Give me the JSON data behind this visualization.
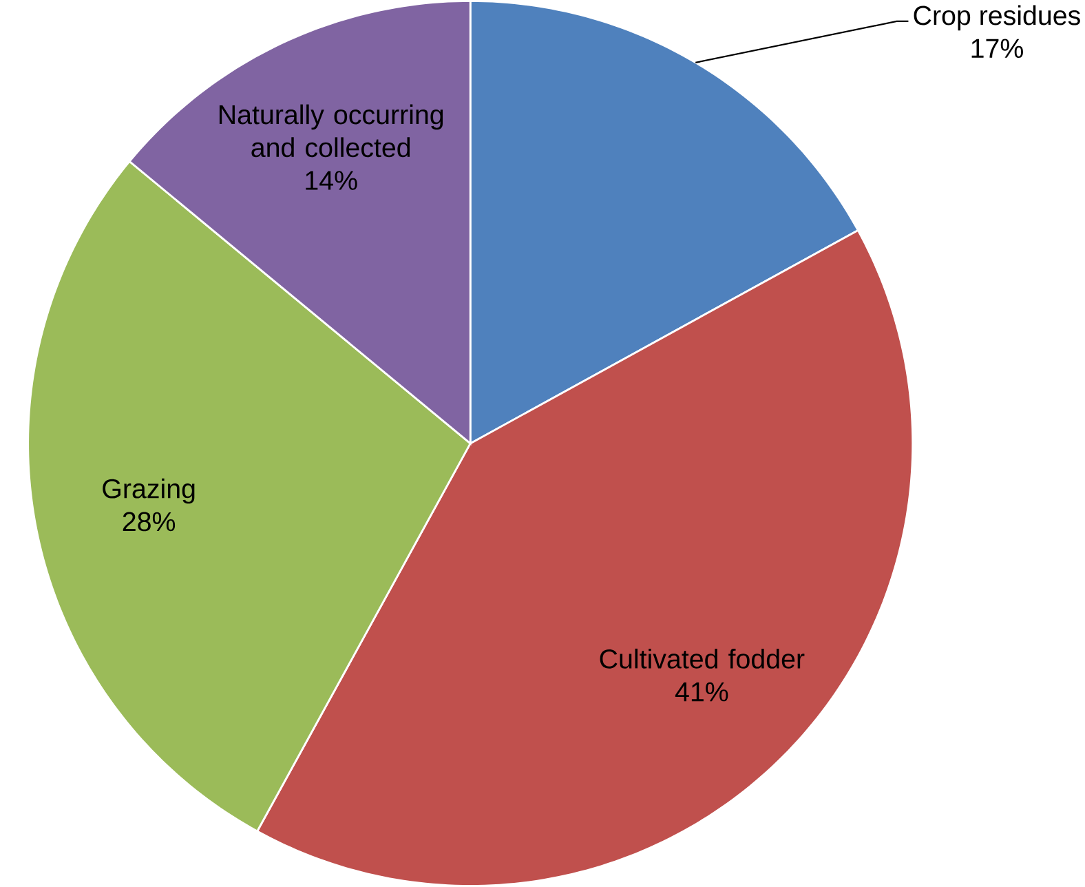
{
  "chart_data": {
    "type": "pie",
    "categories": [
      "Crop residues",
      "Cultivated fodder",
      "Grazing",
      "Naturally occurring and collected"
    ],
    "values": [
      17,
      41,
      28,
      14
    ],
    "colors": [
      "#4f81bd",
      "#c0504d",
      "#9bbb59",
      "#8064a2"
    ],
    "value_labels": [
      "17%",
      "41%",
      "28%",
      "14%"
    ]
  }
}
